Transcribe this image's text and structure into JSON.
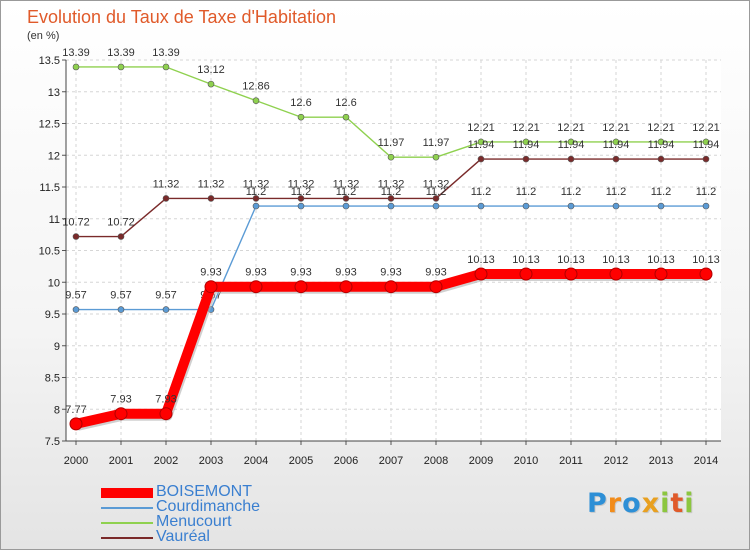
{
  "title": "Evolution du Taux de Taxe d'Habitation",
  "subtitle": "(en %)",
  "brand": {
    "letters": [
      "P",
      "r",
      "o",
      "x",
      "i",
      "t",
      "i"
    ],
    "colors": [
      "#2d8fd6",
      "#f28c1a",
      "#2d8fd6",
      "#e8a020",
      "#8cc63f",
      "#e05a2a",
      "#8cc63f"
    ]
  },
  "chart_data": {
    "type": "line",
    "title": "Evolution du Taux de Taxe d'Habitation",
    "ylabel": "(en %)",
    "xlabel": "",
    "x": [
      "2000",
      "2001",
      "2002",
      "2003",
      "2004",
      "2005",
      "2006",
      "2007",
      "2008",
      "2009",
      "2010",
      "2011",
      "2012",
      "2013",
      "2014"
    ],
    "ylim": [
      7.5,
      13.5
    ],
    "yticks": [
      "7.5",
      "8",
      "8.5",
      "9",
      "9.5",
      "10",
      "10.5",
      "11",
      "11.5",
      "12",
      "12.5",
      "13",
      "13.5"
    ],
    "grid": true,
    "legend_position": "bottom-left",
    "series": [
      {
        "name": "BOISEMONT",
        "color": "#ff0000",
        "values": [
          7.77,
          7.93,
          7.93,
          9.93,
          9.93,
          9.93,
          9.93,
          9.93,
          9.93,
          10.13,
          10.13,
          10.13,
          10.13,
          10.13,
          10.13
        ],
        "labels": [
          "7.77",
          "7.93",
          "7.93",
          "9.93",
          "9.93",
          "9.93",
          "9.93",
          "9.93",
          "9.93",
          "10.13",
          "10.13",
          "10.13",
          "10.13",
          "10.13",
          "10.13"
        ]
      },
      {
        "name": "Courdimanche",
        "color": "#5b9bd5",
        "values": [
          9.57,
          9.57,
          9.57,
          9.57,
          11.2,
          11.2,
          11.2,
          11.2,
          11.2,
          11.2,
          11.2,
          11.2,
          11.2,
          11.2,
          11.2
        ],
        "labels": [
          "9.57",
          "9.57",
          "9.57",
          "9.57",
          "11.2",
          "11.2",
          "11.2",
          "11.2",
          "11.2",
          "11.2",
          "11.2",
          "11.2",
          "11.2",
          "11.2",
          "11.2"
        ]
      },
      {
        "name": "Menucourt",
        "color": "#8fd14f",
        "values": [
          13.39,
          13.39,
          13.39,
          13.12,
          12.86,
          12.6,
          12.6,
          11.97,
          11.97,
          12.21,
          12.21,
          12.21,
          12.21,
          12.21,
          12.21
        ],
        "labels": [
          "13.39",
          "13.39",
          "13.39",
          "13.12",
          "12.86",
          "12.6",
          "12.6",
          "11.97",
          "11.97",
          "12.21",
          "12.21",
          "12.21",
          "12.21",
          "12.21",
          "12.21"
        ]
      },
      {
        "name": "Vauréal",
        "color": "#7a2a2a",
        "values": [
          10.72,
          10.72,
          11.32,
          11.32,
          11.32,
          11.32,
          11.32,
          11.32,
          11.32,
          11.94,
          11.94,
          11.94,
          11.94,
          11.94,
          11.94
        ],
        "labels": [
          "10.72",
          "10.72",
          "11.32",
          "11.32",
          "11.32",
          "11.32",
          "11.32",
          "11.32",
          "11.32",
          "11.94",
          "11.94",
          "11.94",
          "11.94",
          "11.94",
          "11.94"
        ]
      }
    ]
  }
}
